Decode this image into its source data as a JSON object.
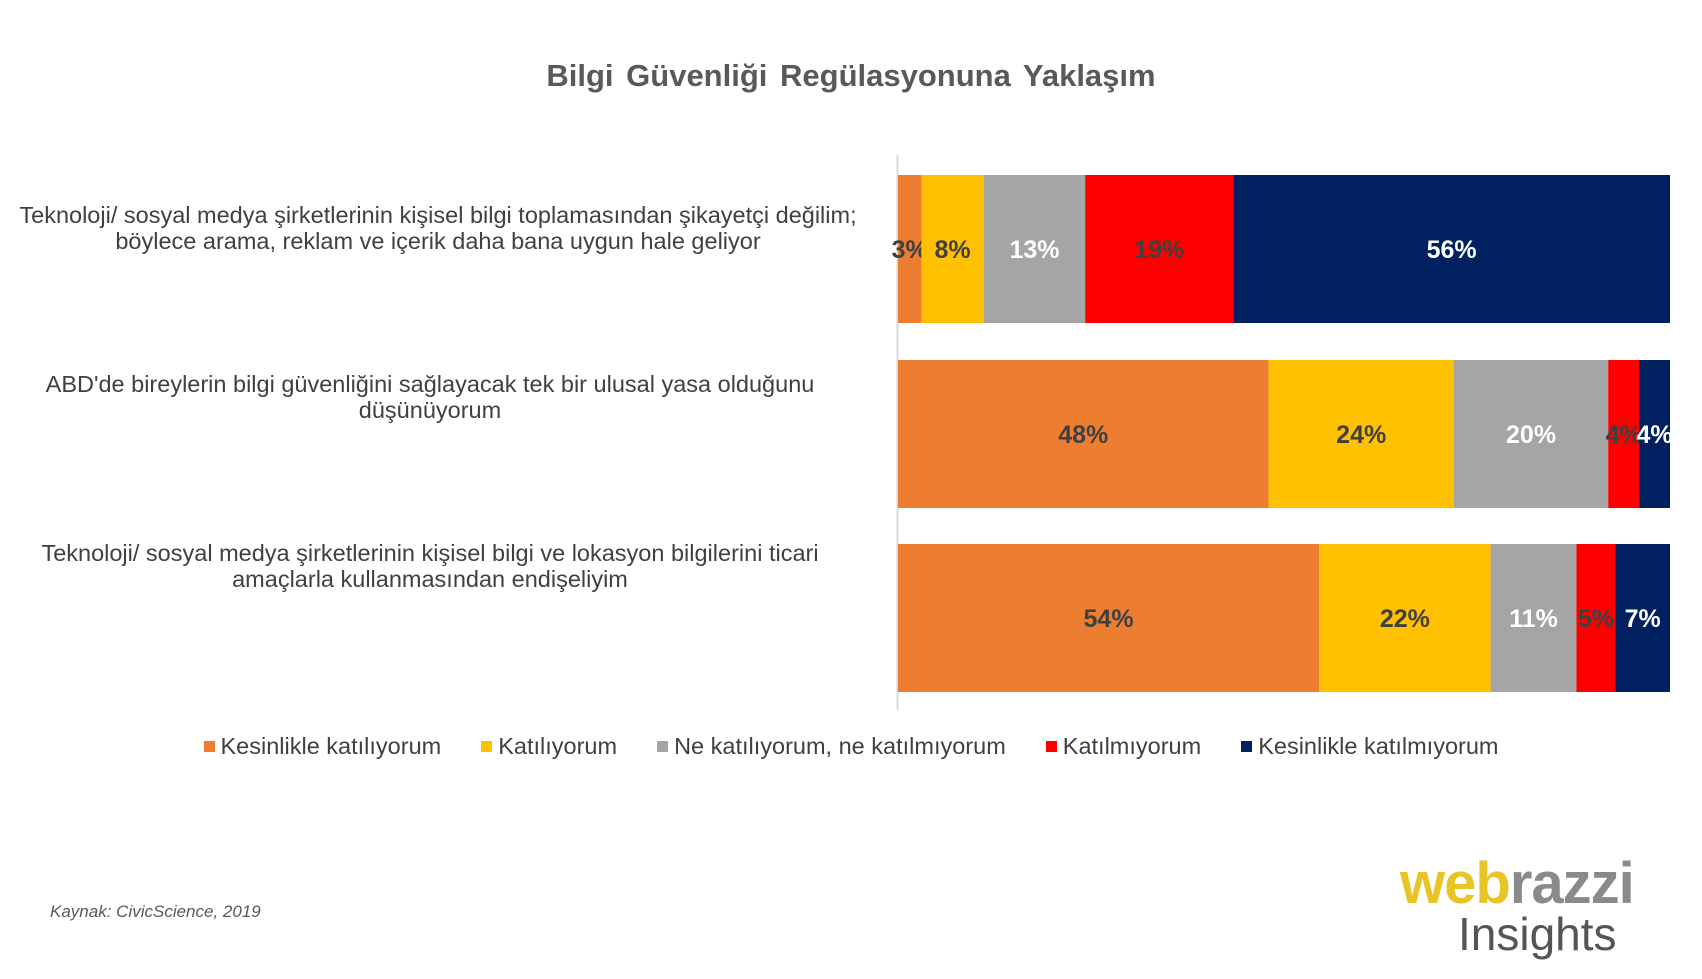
{
  "chart_data": {
    "type": "bar",
    "orientation": "horizontal",
    "stacked": true,
    "title": "Bilgi Güvenliği Regülasyonuna Yaklaşım",
    "categories": [
      "Teknoloji/ sosyal medya şirketlerinin kişisel bilgi toplamasından şikayetçi değilim; böylece arama, reklam ve içerik daha bana uygun hale geliyor",
      "ABD'de bireylerin bilgi güvenliğini sağlayacak tek bir ulusal yasa olduğunu düşünüyorum",
      "Teknoloji/ sosyal medya şirketlerinin kişisel bilgi ve lokasyon bilgilerini ticari amaçlarla kullanmasından endişeliyim"
    ],
    "series": [
      {
        "name": "Kesinlikle katılıyorum",
        "color": "#ed7d31",
        "values": [
          3,
          48,
          54
        ]
      },
      {
        "name": "Katılıyorum",
        "color": "#ffc000",
        "values": [
          8,
          24,
          22
        ]
      },
      {
        "name": "Ne katılıyorum, ne katılmıyorum",
        "color": "#a5a5a5",
        "values": [
          13,
          20,
          11
        ]
      },
      {
        "name": "Katılmıyorum",
        "color": "#ff0000",
        "values": [
          19,
          4,
          5
        ]
      },
      {
        "name": "Kesinlikle katılmıyorum",
        "color": "#002060",
        "values": [
          56,
          4,
          7
        ]
      }
    ],
    "label_colors": [
      "#404040",
      "#404040",
      "#ffffff",
      "#404040",
      "#ffffff"
    ],
    "value_suffix": "%",
    "legend_position": "bottom",
    "grid": false
  },
  "source_note": "Kaynak: CivicScience, 2019",
  "logo": {
    "web": "web",
    "razzi": "razzi",
    "insights": "Insights"
  }
}
